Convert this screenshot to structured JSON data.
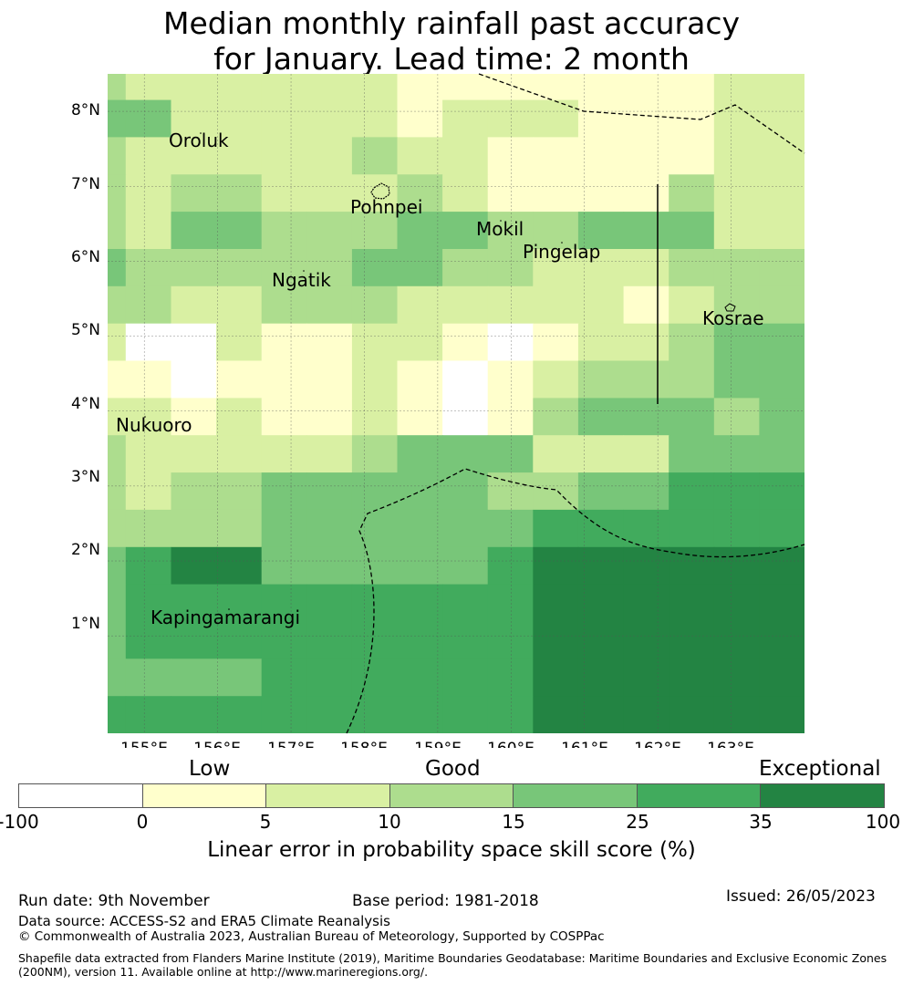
{
  "title": {
    "line1": "Median monthly rainfall past accuracy",
    "line2": "for January. Lead time: 2 month"
  },
  "map": {
    "lon_range": [
      154.5,
      164.0
    ],
    "lat_range": [
      -0.3,
      8.5
    ],
    "lon_ticks": [
      "155°E",
      "156°E",
      "157°E",
      "158°E",
      "159°E",
      "160°E",
      "161°E",
      "162°E",
      "163°E"
    ],
    "lat_ticks": [
      "8°N",
      "7°N",
      "6°N",
      "5°N",
      "4°N",
      "3°N",
      "2°N",
      "1°N"
    ],
    "grid_cell_deg": 0.833,
    "skill_grid_category_codes_north_to_south": [
      "3222222111111122",
      "4422222122211122",
      "3222223221111122",
      "3233222321111322",
      "3244333443344422",
      "4333334433222333",
      "3322333222221233",
      "2002112210122344",
      "1101112101233344",
      "2212112101344434",
      "3222223444222444",
      "3233444443344555",
      "3333444444555555",
      "4566444445666666",
      "4555555555666666",
      "4555555555666666",
      "4444555555666666",
      "5555555555666666"
    ],
    "places": [
      {
        "name": "Oroluk"
      },
      {
        "name": "Pohnpei"
      },
      {
        "name": "Mokil"
      },
      {
        "name": "Pingelap"
      },
      {
        "name": "Ngatik"
      },
      {
        "name": "Kosrae"
      },
      {
        "name": "Nukuoro"
      },
      {
        "name": "Kapingamarangi"
      }
    ]
  },
  "colorbar": {
    "categories": [
      "Low",
      "Good",
      "Exceptional"
    ],
    "ticks": [
      "-100",
      "0",
      "5",
      "10",
      "15",
      "25",
      "35",
      "100"
    ],
    "colors": [
      "#ffffff",
      "#ffffcc",
      "#d9f0a3",
      "#addd8e",
      "#78c679",
      "#41ab5d",
      "#238443"
    ],
    "label": "Linear error in probability space skill score (%)"
  },
  "footer": {
    "run_date": "Run date: 9th November",
    "base_period": "Base period: 1981-2018",
    "issued": "Issued: 26/05/2023",
    "data_source": "Data source: ACCESS-S2 and ERA5 Climate Reanalysis",
    "copyright": "© Commonwealth of Australia 2023, Australian Bureau of Meteorology, Supported by COSPPac",
    "shapefile_line1": "Shapefile data extracted from Flanders Marine Institute (2019), Maritime Boundaries Geodatabase: Maritime Boundaries and Exclusive Economic Zones",
    "shapefile_line2": "(200NM), version 11. Available online at http://www.marineregions.org/."
  }
}
